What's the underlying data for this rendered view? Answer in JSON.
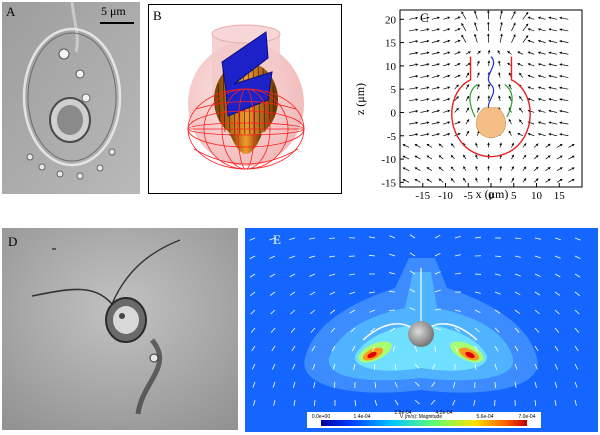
{
  "panels": {
    "a": {
      "label": "A",
      "scale_bar": "5 μm"
    },
    "b": {
      "label": "B"
    },
    "c": {
      "label": "C",
      "chart_data": {
        "type": "scatter",
        "xlabel": "x (μm)",
        "ylabel": "z (μm)",
        "xlim": [
          -20,
          20
        ],
        "ylim": [
          -16,
          22
        ],
        "xticks": [
          -15,
          -10,
          -5,
          0,
          5,
          10,
          15
        ],
        "yticks": [
          -15,
          -10,
          -5,
          0,
          5,
          10,
          15,
          20
        ]
      }
    },
    "d": {
      "label": "D"
    },
    "e": {
      "label": "E",
      "colorbar_title": "V (m/s): Magnitude",
      "colorbar_ticks": [
        "0.0e+00",
        "1.4e-04",
        "2.8e-04",
        "4.2e-04",
        "5.6e-04",
        "7.0e-04"
      ]
    }
  },
  "colors": {
    "hot": "#ff4b1f",
    "cold": "#00008f",
    "field": "#1a6cff",
    "cell": "#f3bf86"
  }
}
